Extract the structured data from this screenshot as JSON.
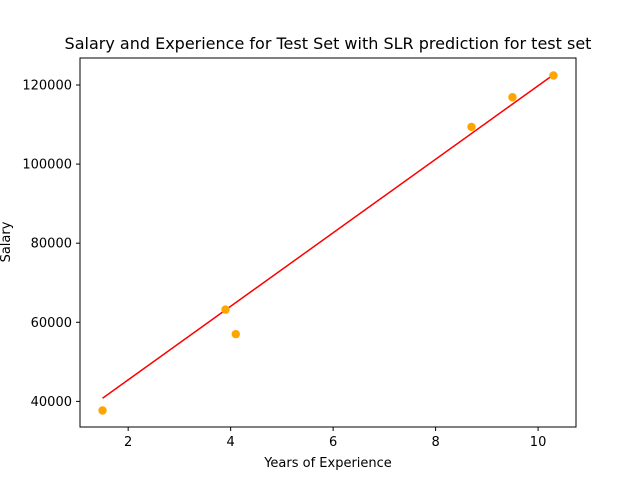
{
  "chart_data": {
    "type": "scatter",
    "title": "Salary and Experience for Test Set with SLR prediction for test set",
    "xlabel": "Years of Experience",
    "ylabel": "Salary",
    "xlim": [
      1.06,
      10.74
    ],
    "ylim": [
      33525,
      126825
    ],
    "xticks": [
      2,
      4,
      6,
      8,
      10
    ],
    "yticks": [
      40000,
      60000,
      80000,
      100000,
      120000
    ],
    "grid": false,
    "series": [
      {
        "kind": "scatter",
        "color": "#FFA500",
        "points": [
          {
            "x": 1.5,
            "y": 37700
          },
          {
            "x": 3.9,
            "y": 63200
          },
          {
            "x": 4.1,
            "y": 57000
          },
          {
            "x": 8.7,
            "y": 109400
          },
          {
            "x": 9.5,
            "y": 116900
          },
          {
            "x": 10.3,
            "y": 122400
          }
        ]
      },
      {
        "kind": "line",
        "color": "#FF0000",
        "points": [
          {
            "x": 1.5,
            "y": 40800
          },
          {
            "x": 10.3,
            "y": 122600
          }
        ]
      }
    ]
  }
}
